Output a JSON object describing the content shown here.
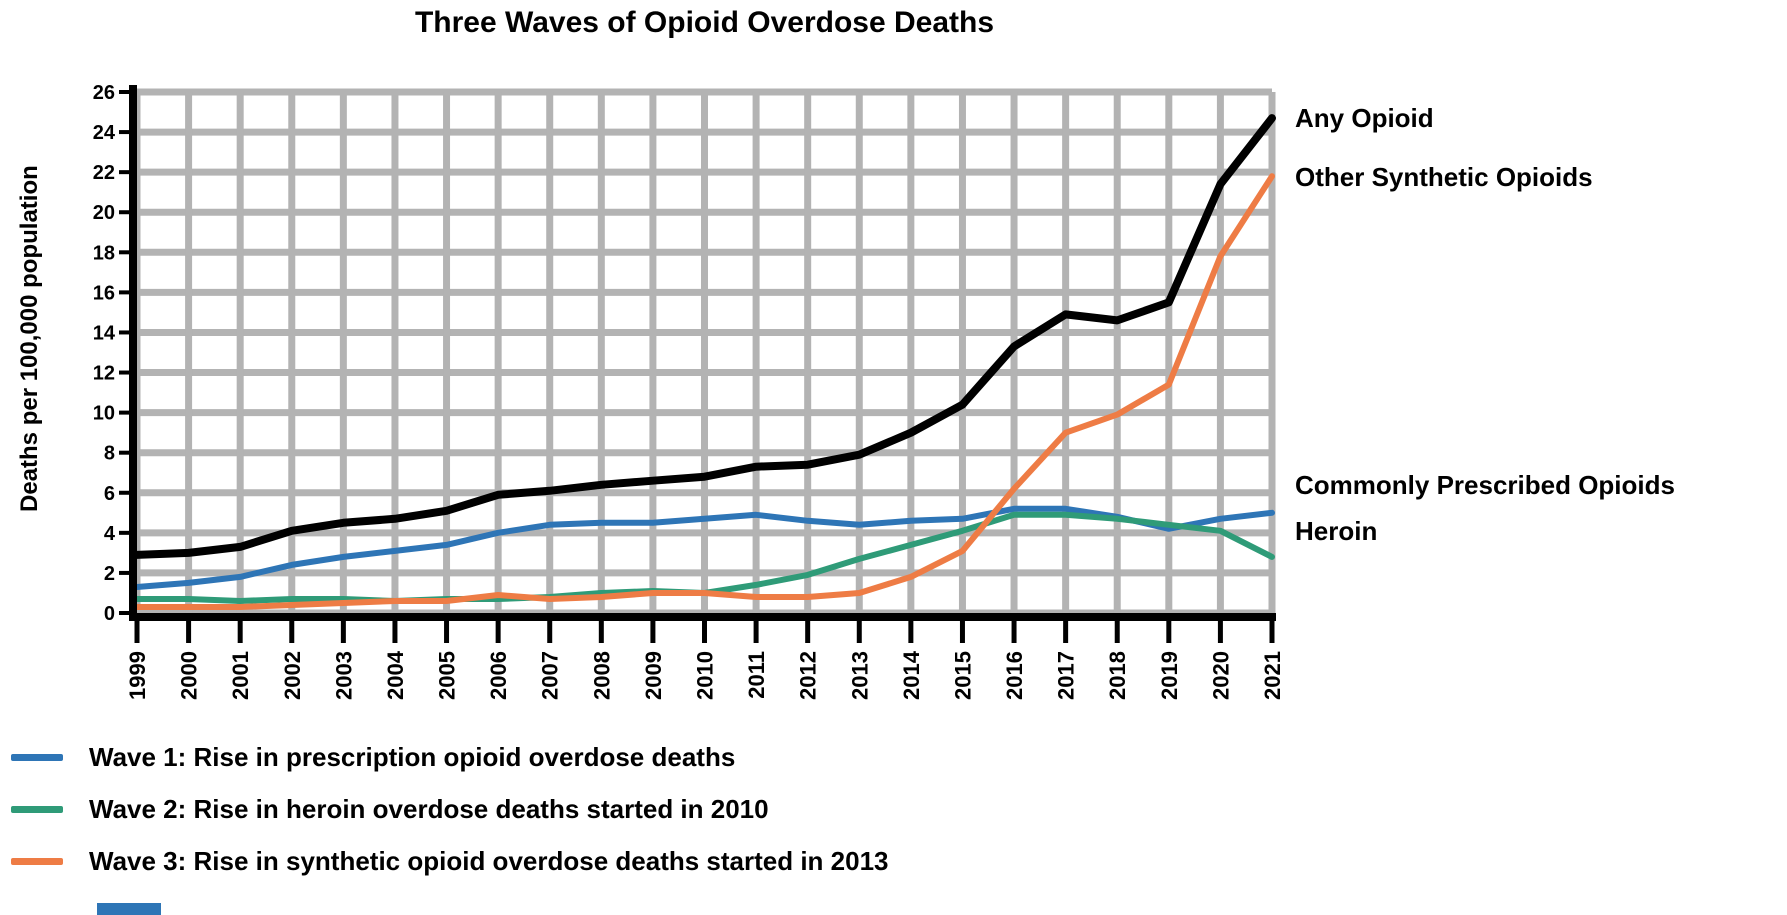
{
  "title": "Three Waves of Opioid Overdose Deaths",
  "y_axis": {
    "title": "Deaths per 100,000 population"
  },
  "annotations": {
    "any_opioid": "Any Opioid",
    "other_synthetic": "Other Synthetic Opioids",
    "commonly_prescribed": "Commonly Prescribed Opioids",
    "heroin": "Heroin"
  },
  "legend": {
    "items": [
      {
        "label": "Wave 1: Rise in prescription opioid overdose deaths",
        "color": "#2E75B6"
      },
      {
        "label": "Wave 2: Rise in heroin overdose deaths started in 2010",
        "color": "#2F9B78"
      },
      {
        "label": "Wave 3: Rise in synthetic opioid overdose deaths started in 2013",
        "color": "#EE7C45"
      }
    ]
  },
  "colors": {
    "any_opioid": "#000000",
    "other_synthetic": "#EE7C45",
    "commonly_prescribed": "#2E75B6",
    "heroin": "#2F9B78",
    "grid": "#B3B3B3"
  },
  "chart_data": {
    "type": "line",
    "title": "Three Waves of Opioid Overdose Deaths",
    "xlabel": "",
    "ylabel": "Deaths per 100,000 population",
    "x": [
      1999,
      2000,
      2001,
      2002,
      2003,
      2004,
      2005,
      2006,
      2007,
      2008,
      2009,
      2010,
      2011,
      2012,
      2013,
      2014,
      2015,
      2016,
      2017,
      2018,
      2019,
      2020,
      2021
    ],
    "ylim": [
      0,
      26
    ],
    "ytick_step": 2,
    "grid": true,
    "legend_position": "bottom-left",
    "series": [
      {
        "name": "Any Opioid",
        "color": "#000000",
        "values": [
          2.9,
          3.0,
          3.3,
          4.1,
          4.5,
          4.7,
          5.1,
          5.9,
          6.1,
          6.4,
          6.6,
          6.8,
          7.3,
          7.4,
          7.9,
          9.0,
          10.4,
          13.3,
          14.9,
          14.6,
          15.5,
          21.4,
          24.7
        ]
      },
      {
        "name": "Other Synthetic Opioids",
        "color": "#EE7C45",
        "values": [
          0.3,
          0.3,
          0.3,
          0.4,
          0.5,
          0.6,
          0.6,
          0.9,
          0.7,
          0.8,
          1.0,
          1.0,
          0.8,
          0.8,
          1.0,
          1.8,
          3.1,
          6.2,
          9.0,
          9.9,
          11.4,
          17.8,
          21.8
        ]
      },
      {
        "name": "Commonly Prescribed Opioids",
        "color": "#2E75B6",
        "values": [
          1.3,
          1.5,
          1.8,
          2.4,
          2.8,
          3.1,
          3.4,
          4.0,
          4.4,
          4.5,
          4.5,
          4.7,
          4.9,
          4.6,
          4.4,
          4.6,
          4.7,
          5.2,
          5.2,
          4.8,
          4.2,
          4.7,
          5.0
        ]
      },
      {
        "name": "Heroin",
        "color": "#2F9B78",
        "values": [
          0.7,
          0.7,
          0.6,
          0.7,
          0.7,
          0.6,
          0.7,
          0.7,
          0.8,
          1.0,
          1.1,
          1.0,
          1.4,
          1.9,
          2.7,
          3.4,
          4.1,
          4.9,
          4.9,
          4.7,
          4.4,
          4.1,
          2.8
        ]
      }
    ]
  }
}
